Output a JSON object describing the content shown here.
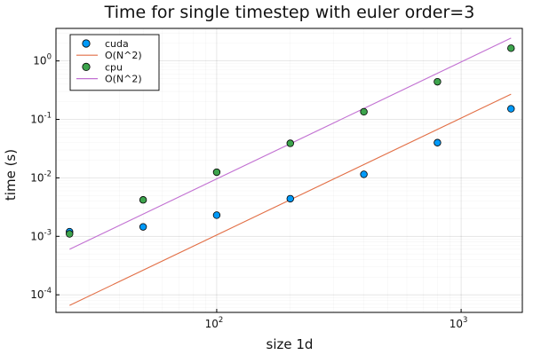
{
  "chart_data": {
    "type": "scatter",
    "title": "Time for single timestep with euler order=3",
    "xlabel": "size 1d",
    "ylabel": "time (s)",
    "xscale": "log",
    "yscale": "log",
    "xlim": [
      22,
      1780
    ],
    "ylim": [
      5e-05,
      3.6
    ],
    "grid": true,
    "legend_position": "top-left",
    "x_ticks": [
      {
        "value": 100,
        "base": "10",
        "exp": "2"
      },
      {
        "value": 1000,
        "base": "10",
        "exp": "3"
      }
    ],
    "y_ticks": [
      {
        "value": 0.0001,
        "base": "10",
        "exp": "-4"
      },
      {
        "value": 0.001,
        "base": "10",
        "exp": "-3"
      },
      {
        "value": 0.01,
        "base": "10",
        "exp": "-2"
      },
      {
        "value": 0.1,
        "base": "10",
        "exp": "-1"
      },
      {
        "value": 1,
        "base": "10",
        "exp": "0"
      }
    ],
    "series": [
      {
        "name": "cuda",
        "kind": "scatter",
        "color": "#009af9",
        "x": [
          25,
          50,
          100,
          200,
          400,
          800,
          1600
        ],
        "y": [
          0.0012,
          0.00145,
          0.0023,
          0.0044,
          0.0115,
          0.04,
          0.152
        ]
      },
      {
        "name": "O(N^2)",
        "kind": "line",
        "color": "#e26f46",
        "x": [
          25,
          1600
        ],
        "y": [
          6.6e-05,
          0.27
        ]
      },
      {
        "name": "cpu",
        "kind": "scatter",
        "color": "#3da44d",
        "x": [
          25,
          50,
          100,
          200,
          400,
          800,
          1600
        ],
        "y": [
          0.0011,
          0.0042,
          0.0125,
          0.039,
          0.135,
          0.44,
          1.65
        ]
      },
      {
        "name": "O(N^2)",
        "kind": "line",
        "color": "#c271d2",
        "x": [
          25,
          1600
        ],
        "y": [
          0.0006,
          2.46
        ]
      }
    ]
  }
}
